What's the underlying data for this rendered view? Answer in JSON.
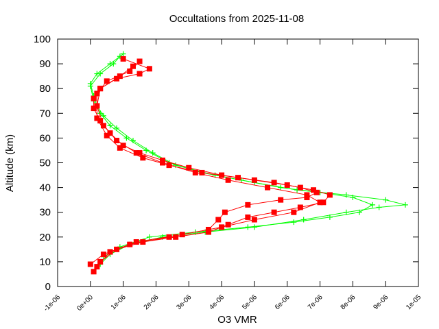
{
  "chart_data": {
    "type": "line",
    "title": "Occultations from 2025-11-08",
    "xlabel": "O3 VMR",
    "ylabel": "Altitude (km)",
    "xlim": [
      -1e-06,
      1e-05
    ],
    "ylim": [
      0,
      100
    ],
    "xticks": [
      -1e-06,
      0,
      1e-06,
      2e-06,
      3e-06,
      4e-06,
      5e-06,
      6e-06,
      7e-06,
      8e-06,
      9e-06,
      1e-05
    ],
    "xtick_labels": [
      "-1e-06",
      "0e+00",
      "1e-06",
      "2e-06",
      "3e-06",
      "4e-06",
      "5e-06",
      "6e-06",
      "7e-06",
      "8e-06",
      "9e-06",
      "1e-05"
    ],
    "yticks": [
      0,
      10,
      20,
      30,
      40,
      50,
      60,
      70,
      80,
      90,
      100
    ],
    "ytick_labels": [
      "0",
      "10",
      "20",
      "30",
      "40",
      "50",
      "60",
      "70",
      "80",
      "90",
      "100"
    ],
    "grid": false,
    "legend": "none",
    "series": [
      {
        "color": "#00ff00",
        "marker": "plus",
        "x": [
          3e-07,
          6e-07,
          1.2e-06,
          2.2e-06,
          3.5e-06,
          5e-06,
          6.5e-06,
          7.8e-06,
          8.8e-06,
          9.6e-06,
          9e-06,
          7.8e-06,
          6.3e-06,
          5e-06,
          3.8e-06,
          2.6e-06,
          1.9e-06,
          1.3e-06,
          8e-07,
          4e-07,
          2e-07,
          1e-07,
          0,
          2e-07,
          6e-07,
          1e-06
        ],
        "y": [
          9,
          13,
          17,
          20,
          22,
          24,
          27,
          30,
          32,
          33,
          35,
          37,
          39,
          42,
          45,
          49,
          54,
          59,
          64,
          69,
          73,
          77,
          82,
          86,
          90,
          94
        ]
      },
      {
        "color": "#00ff00",
        "marker": "plus",
        "x": [
          4e-07,
          9e-07,
          1.8e-06,
          3.2e-06,
          4.8e-06,
          6.2e-06,
          7.3e-06,
          8.2e-06,
          8.6e-06,
          8e-06,
          7e-06,
          5.8e-06,
          4.6e-06,
          3.4e-06,
          2.4e-06,
          1.7e-06,
          1.1e-06,
          6e-07,
          3e-07,
          1e-07,
          0,
          3e-07,
          7e-07,
          9e-07
        ],
        "y": [
          12,
          16,
          20,
          22,
          24,
          26,
          28,
          30,
          33,
          36,
          38,
          40,
          43,
          46,
          50,
          55,
          60,
          65,
          70,
          75,
          81,
          86,
          90,
          93
        ]
      },
      {
        "color": "#ff0000",
        "marker": "square",
        "x": [
          1e-07,
          3e-07,
          8e-07,
          1.6e-06,
          2.6e-06,
          3.6e-06,
          4.2e-06,
          4.8e-06,
          5.6e-06,
          6.4e-06,
          7.1e-06,
          7.3e-06,
          6.8e-06,
          6e-06,
          5e-06,
          4e-06,
          3e-06,
          2.2e-06,
          1.5e-06,
          1e-06,
          6e-07,
          3e-07,
          1e-07,
          1e-07,
          3e-07,
          8e-07,
          1.5e-06,
          1.8e-06,
          1e-06
        ],
        "y": [
          6,
          10,
          15,
          18,
          20,
          22,
          25,
          28,
          30,
          32,
          34,
          37,
          39,
          41,
          43,
          45,
          48,
          51,
          54,
          57,
          62,
          67,
          72,
          76,
          80,
          84,
          86,
          88,
          92
        ]
      },
      {
        "color": "#ff0000",
        "marker": "square",
        "x": [
          0,
          4e-07,
          1.2e-06,
          2.4e-06,
          3.6e-06,
          3.9e-06,
          4.1e-06,
          4.8e-06,
          5.8e-06,
          6.6e-06,
          6.9e-06,
          6.4e-06,
          5.6e-06,
          4.5e-06,
          3.4e-06,
          2.4e-06,
          1.6e-06,
          9e-07,
          5e-07,
          2e-07,
          2e-07,
          5e-07,
          1.2e-06,
          1.5e-06
        ],
        "y": [
          9,
          13,
          17,
          20,
          23,
          27,
          30,
          33,
          35,
          36,
          38,
          40,
          42,
          44,
          46,
          49,
          52,
          56,
          61,
          68,
          78,
          83,
          87,
          91
        ]
      },
      {
        "color": "#ff0000",
        "marker": "square",
        "x": [
          2e-07,
          6e-07,
          1.4e-06,
          2.8e-06,
          4e-06,
          5e-06,
          6.2e-06,
          7e-06,
          6.6e-06,
          5.4e-06,
          4.2e-06,
          3.2e-06,
          2.2e-06,
          1.4e-06,
          8e-07,
          4e-07,
          2e-07,
          3e-07,
          9e-07,
          1.3e-06
        ],
        "y": [
          8,
          14,
          18,
          21,
          24,
          27,
          30,
          34,
          37,
          40,
          43,
          46,
          50,
          54,
          59,
          65,
          73,
          80,
          85,
          89
        ]
      }
    ]
  }
}
